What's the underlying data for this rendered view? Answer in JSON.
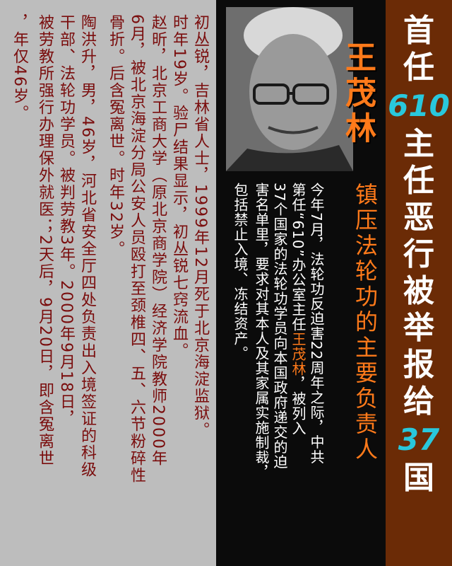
{
  "header": {
    "title_chars": [
      "首",
      "任"
    ],
    "number_610": "610",
    "title_rest": [
      "主",
      "任",
      "恶",
      "行",
      "被",
      "举",
      "报",
      "给"
    ],
    "number_37": "37",
    "title_end": [
      "国"
    ],
    "colors": {
      "bg": "#6b2b06",
      "text": "#ffffff",
      "accent": "#29c8dc"
    }
  },
  "profile": {
    "name": "王茂林",
    "subtitle": "镇压法轮功的主要负责人",
    "body_col1": "今年7月，法轮功反迫害22周年之际，中共",
    "body_col2_pre": "第任“610”办公室主任",
    "body_col2_name": "王茂林",
    "body_col2_post": "，被列入",
    "body_col3": "37个国家的法轮功学员向本国政府递交的迫",
    "body_col4": "害名单里，要求对其本人及其家属实施制裁，",
    "body_col5": "包括禁止入境、冻结资产。",
    "colors": {
      "name": "#ff7a1a",
      "text": "#ffffff",
      "bg": "#0b0b0b"
    }
  },
  "cases": {
    "col1": "初丛锐，吉林省人士，1999年12月死于北京海淀监狱。",
    "col2": "时年19岁。验尸结果显示，初丛锐七窍流血。",
    "col3": "赵昕，北京工商大学（原北京商学院）经济学院教师2000年",
    "col4": "6月，被北京海淀分局公安人员殴打至颈椎四、五、六节粉碎性",
    "col5": "骨折。后含冤离世。时年32岁。",
    "col6": "陶洪升，男，46岁，河北省安全厅四处负责出入境签证的科级",
    "col7": "干部、法轮功学员。被判劳教3年。2000年9月18日，",
    "col8": "被劳教所强行办理保外就医；2天后，9月20日，即含冤离世",
    "col9": "，年仅46岁。",
    "colors": {
      "text": "#7a0d0d",
      "bg": "#bdbdbd"
    }
  }
}
